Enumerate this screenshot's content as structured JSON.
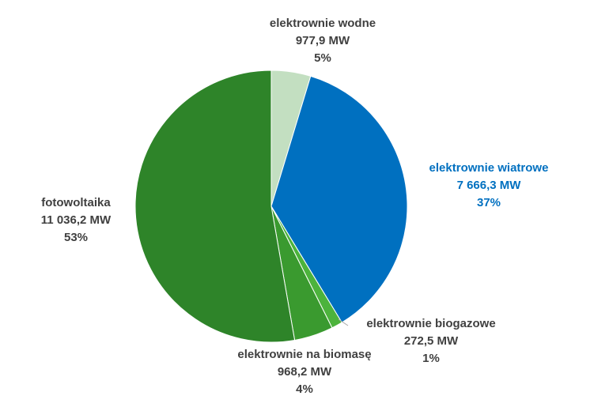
{
  "chart_data": {
    "type": "pie",
    "categories": [
      "elektrownie wodne",
      "elektrownie wiatrowe",
      "elektrownie biogazowe",
      "elektrownie na biomasę",
      "fotowoltaika"
    ],
    "values": [
      977.9,
      7666.3,
      272.5,
      968.2,
      11036.2
    ],
    "value_labels": [
      "977,9 MW",
      "7 666,3 MW",
      "272,5 MW",
      "968,2 MW",
      "11 036,2 MW"
    ],
    "percent_labels": [
      "5%",
      "37%",
      "1%",
      "4%",
      "53%"
    ],
    "colors": [
      "#c3dfc1",
      "#0070c0",
      "#4cb33c",
      "#3a9a2f",
      "#2e8429"
    ],
    "label_colors": [
      "#404040",
      "#0070c0",
      "#404040",
      "#404040",
      "#404040"
    ]
  }
}
